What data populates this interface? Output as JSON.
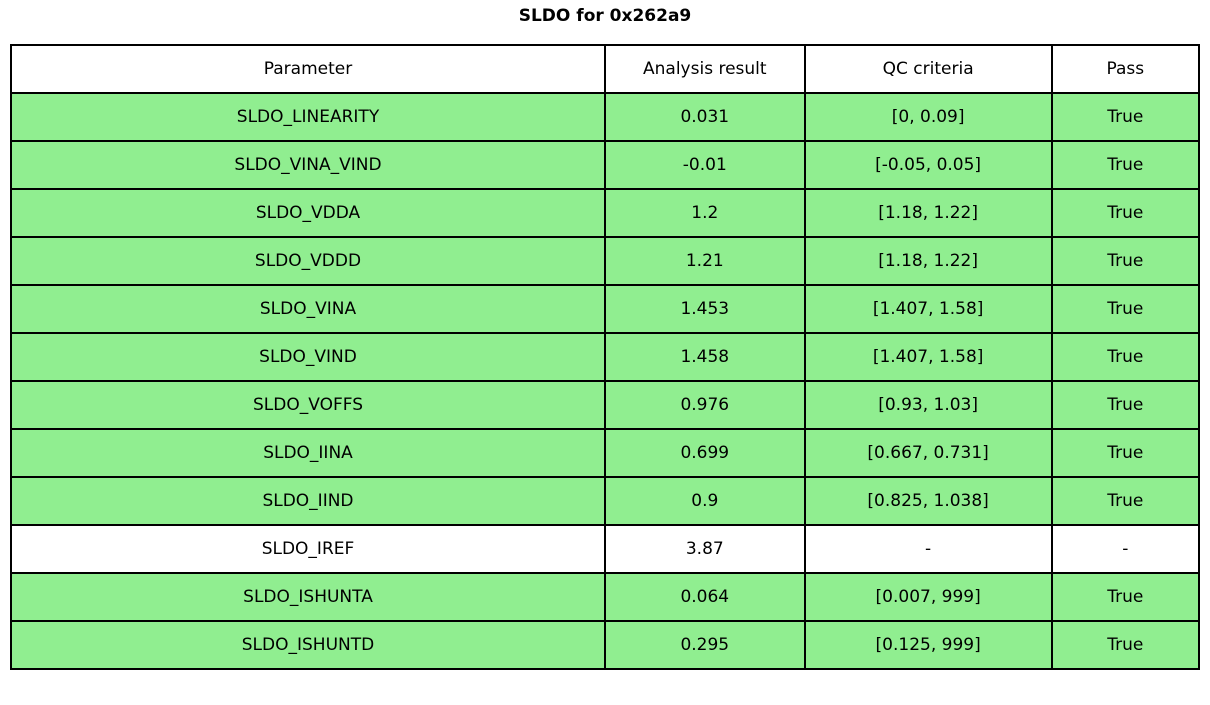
{
  "title": "SLDO for 0x262a9",
  "colors": {
    "row_pass_green": "#90EE90",
    "row_no_qc_white": "#ffffff",
    "border": "#000000",
    "text": "#000000"
  },
  "chart_data": {
    "type": "table",
    "title": "SLDO for 0x262a9",
    "columns": [
      "Parameter",
      "Analysis result",
      "QC criteria",
      "Pass"
    ],
    "rows": [
      {
        "parameter": "SLDO_LINEARITY",
        "result": "0.031",
        "criteria": "[0, 0.09]",
        "pass": "True",
        "highlight": true
      },
      {
        "parameter": "SLDO_VINA_VIND",
        "result": "-0.01",
        "criteria": "[-0.05, 0.05]",
        "pass": "True",
        "highlight": true
      },
      {
        "parameter": "SLDO_VDDA",
        "result": "1.2",
        "criteria": "[1.18, 1.22]",
        "pass": "True",
        "highlight": true
      },
      {
        "parameter": "SLDO_VDDD",
        "result": "1.21",
        "criteria": "[1.18, 1.22]",
        "pass": "True",
        "highlight": true
      },
      {
        "parameter": "SLDO_VINA",
        "result": "1.453",
        "criteria": "[1.407, 1.58]",
        "pass": "True",
        "highlight": true
      },
      {
        "parameter": "SLDO_VIND",
        "result": "1.458",
        "criteria": "[1.407, 1.58]",
        "pass": "True",
        "highlight": true
      },
      {
        "parameter": "SLDO_VOFFS",
        "result": "0.976",
        "criteria": "[0.93, 1.03]",
        "pass": "True",
        "highlight": true
      },
      {
        "parameter": "SLDO_IINA",
        "result": "0.699",
        "criteria": "[0.667, 0.731]",
        "pass": "True",
        "highlight": true
      },
      {
        "parameter": "SLDO_IIND",
        "result": "0.9",
        "criteria": "[0.825, 1.038]",
        "pass": "True",
        "highlight": true
      },
      {
        "parameter": "SLDO_IREF",
        "result": "3.87",
        "criteria": "-",
        "pass": "-",
        "highlight": false
      },
      {
        "parameter": "SLDO_ISHUNTA",
        "result": "0.064",
        "criteria": "[0.007, 999]",
        "pass": "True",
        "highlight": true
      },
      {
        "parameter": "SLDO_ISHUNTD",
        "result": "0.295",
        "criteria": "[0.125, 999]",
        "pass": "True",
        "highlight": true
      }
    ]
  }
}
